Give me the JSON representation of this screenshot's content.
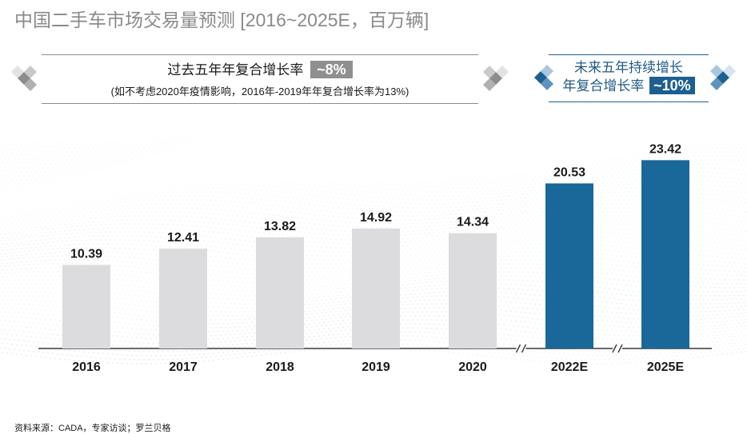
{
  "title": "中国二手车市场交易量预测 [2016~2025E，百万辆]",
  "cagr_past": {
    "label": "过去五年年复合增长率",
    "value": "~8%",
    "note": "(如不考虑2020年疫情影响，2016年-2019年年复合增长率为13%)"
  },
  "cagr_future": {
    "line1": "未来五年持续增长",
    "line2": "年复合增长率",
    "value": "~10%"
  },
  "source": "资料来源：CADA，专家访谈；罗兰贝格",
  "colors": {
    "historic": "#dcdcde",
    "forecast": "#1a6799",
    "title": "#8a8a8a",
    "accent": "#1e5f90",
    "pill_grey": "#8f8f8f"
  },
  "chart_data": {
    "type": "bar",
    "categories": [
      "2016",
      "2017",
      "2018",
      "2019",
      "2020",
      "2022E",
      "2025E"
    ],
    "values": [
      10.39,
      12.41,
      13.82,
      14.92,
      14.34,
      20.53,
      23.42
    ],
    "value_labels": [
      "10.39",
      "12.41",
      "13.82",
      "14.92",
      "14.34",
      "20.53",
      "23.42"
    ],
    "forecast": [
      false,
      false,
      false,
      false,
      false,
      true,
      true
    ],
    "axis_breaks_before": [
      "2022E",
      "2025E"
    ],
    "ylim": [
      0,
      23.42
    ],
    "title": "中国二手车市场交易量预测 [2016~2025E，百万辆]",
    "xlabel": "",
    "ylabel": ""
  }
}
